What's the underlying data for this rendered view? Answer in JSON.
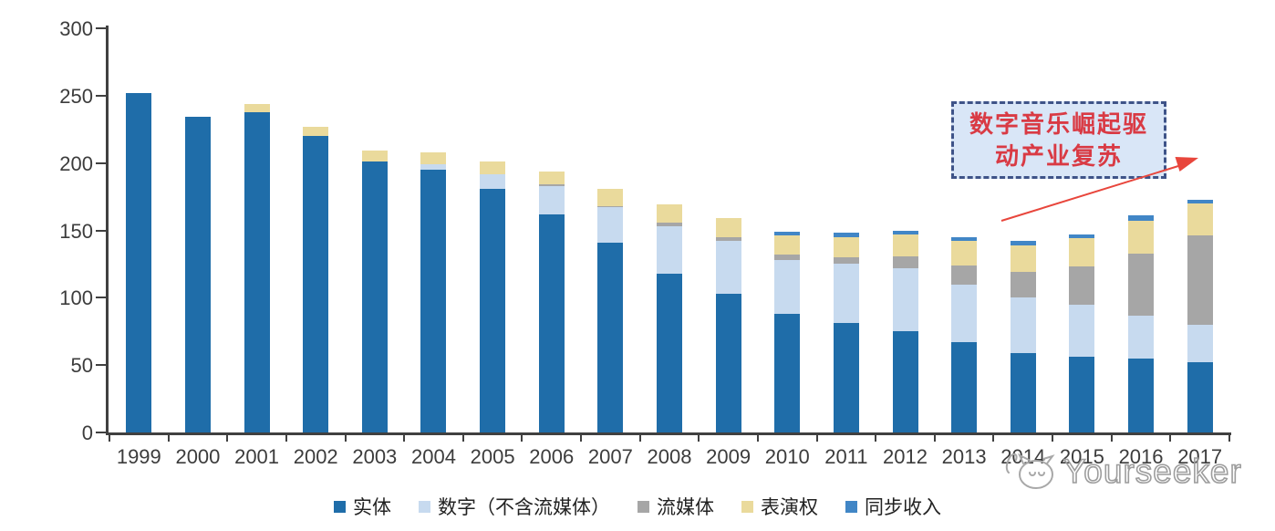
{
  "chart_data": {
    "type": "bar",
    "stacked": true,
    "title": "",
    "categories": [
      "1999",
      "2000",
      "2001",
      "2002",
      "2003",
      "2004",
      "2005",
      "2006",
      "2007",
      "2008",
      "2009",
      "2010",
      "2011",
      "2012",
      "2013",
      "2014",
      "2015",
      "2016",
      "2017"
    ],
    "series": [
      {
        "name": "实体",
        "color": "#1f6da9",
        "values": [
          252,
          234,
          238,
          220,
          201,
          195,
          181,
          162,
          141,
          118,
          103,
          88,
          81,
          75,
          67,
          59,
          56,
          55,
          52
        ]
      },
      {
        "name": "数字（不含流媒体）",
        "color": "#c7daef",
        "values": [
          0,
          0,
          0,
          0,
          0,
          4,
          11,
          21,
          26,
          35,
          39,
          40,
          44,
          47,
          43,
          41,
          39,
          32,
          28
        ]
      },
      {
        "name": "流媒体",
        "color": "#a6a6a6",
        "values": [
          0,
          0,
          0,
          0,
          0,
          0,
          0,
          1,
          1,
          3,
          3,
          4,
          5,
          9,
          14,
          19,
          28,
          46,
          66
        ]
      },
      {
        "name": "表演权",
        "color": "#eada9c",
        "values": [
          0,
          0,
          6,
          7,
          8,
          9,
          9,
          10,
          13,
          13,
          14,
          14,
          15,
          16,
          18,
          20,
          21,
          24,
          24
        ]
      },
      {
        "name": "同步收入",
        "color": "#4186c6",
        "values": [
          0,
          0,
          0,
          0,
          0,
          0,
          0,
          0,
          0,
          0,
          0,
          3,
          3,
          3,
          3,
          3,
          3,
          4,
          3
        ]
      }
    ],
    "ylim": [
      0,
      300
    ],
    "yticks": [
      0,
      50,
      100,
      150,
      200,
      250,
      300
    ],
    "xlabel": "",
    "ylabel": "",
    "grid": false,
    "legend_position": "bottom"
  },
  "annotation": {
    "line1": "数字音乐崛起驱",
    "line2": "动产业复苏",
    "text_color": "#d93a44",
    "box_fill": "#d9e6f7",
    "box_border": "#3e5388",
    "arrow_color": "#e8463c"
  },
  "watermark": {
    "text": "Yourseeker",
    "color": "#9d9d9d"
  },
  "axis": {
    "color": "#404040",
    "label_color": "#3c3c3c"
  }
}
